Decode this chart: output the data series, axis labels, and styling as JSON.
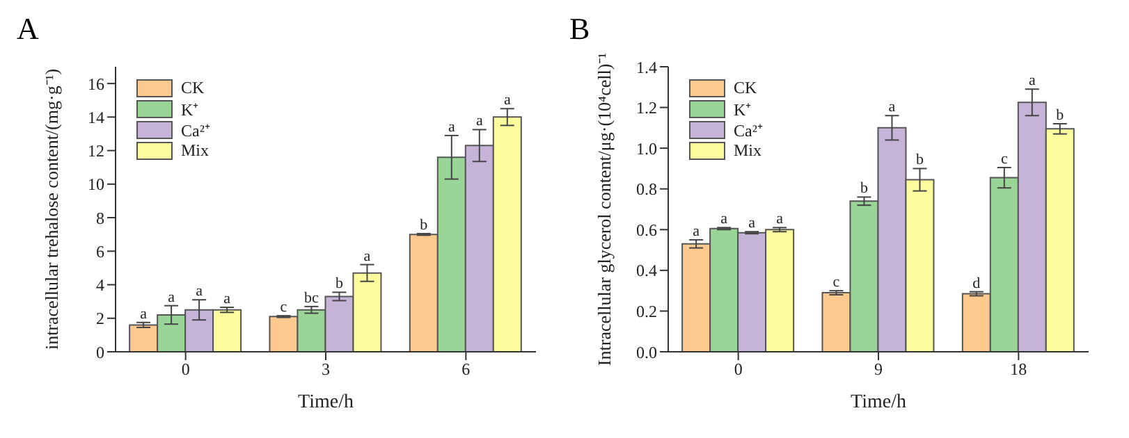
{
  "chart_data": [
    {
      "type": "bar",
      "title": "A",
      "xlabel": "Time/h",
      "ylabel": "intracellular trehalose content/(mg·g⁻¹)",
      "categories": [
        "0",
        "3",
        "6"
      ],
      "ylim": [
        0,
        17
      ],
      "yticks": [
        0,
        2,
        4,
        6,
        8,
        10,
        12,
        14,
        16
      ],
      "grid": false,
      "legend": "top left",
      "series": [
        {
          "name": "CK",
          "color": "#fdc98f",
          "values": [
            1.6,
            2.1,
            7.0
          ],
          "errors": [
            0.15,
            0.05,
            0.05
          ]
        },
        {
          "name": "K⁺",
          "color": "#98d597",
          "values": [
            2.2,
            2.5,
            11.6
          ],
          "errors": [
            0.55,
            0.2,
            1.3
          ]
        },
        {
          "name": "Ca²⁺",
          "color": "#c5b3d8",
          "values": [
            2.5,
            3.3,
            12.3
          ],
          "errors": [
            0.6,
            0.25,
            0.95
          ]
        },
        {
          "name": "Mix",
          "color": "#fdfd9d",
          "values": [
            2.5,
            4.7,
            14.0
          ],
          "errors": [
            0.15,
            0.5,
            0.5
          ]
        }
      ],
      "annotations": [
        "a",
        "a",
        "a",
        "a",
        "c",
        "bc",
        "b",
        "a",
        "b",
        "a",
        "a",
        "a"
      ]
    },
    {
      "type": "bar",
      "title": "B",
      "xlabel": "Time/h",
      "ylabel": "Intracellular glycerol content/μg·(10⁴cell)⁻¹",
      "categories": [
        "0",
        "9",
        "18"
      ],
      "ylim": [
        0,
        1.4
      ],
      "yticks": [
        {
          "value": 0,
          "label": "0.0"
        },
        0.2,
        0.4,
        0.6,
        0.8,
        {
          "value": 1,
          "label": "1.0"
        },
        1.2,
        1.4
      ],
      "grid": false,
      "legend": "top left",
      "series": [
        {
          "name": "CK",
          "color": "#fdc98f",
          "values": [
            0.53,
            0.29,
            0.285
          ],
          "errors": [
            0.02,
            0.01,
            0.01
          ]
        },
        {
          "name": "K⁺",
          "color": "#98d597",
          "values": [
            0.605,
            0.74,
            0.855
          ],
          "errors": [
            0.005,
            0.02,
            0.05
          ]
        },
        {
          "name": "Ca²⁺",
          "color": "#c5b3d8",
          "values": [
            0.585,
            1.1,
            1.225
          ],
          "errors": [
            0.005,
            0.06,
            0.065
          ]
        },
        {
          "name": "Mix",
          "color": "#fdfd9d",
          "values": [
            0.6,
            0.845,
            1.095
          ],
          "errors": [
            0.01,
            0.055,
            0.025
          ]
        }
      ],
      "annotations": [
        "a",
        "a",
        "a",
        "a",
        "c",
        "b",
        "a",
        "b",
        "d",
        "c",
        "a",
        "b"
      ]
    }
  ]
}
